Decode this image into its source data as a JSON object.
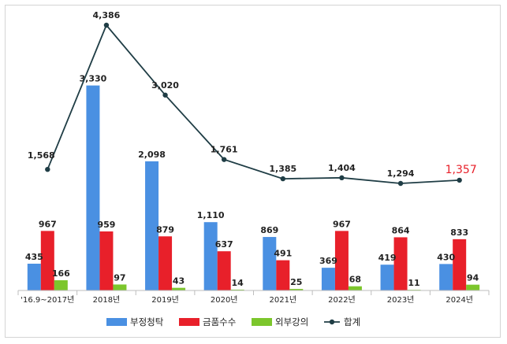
{
  "chart_data": {
    "type": "bar",
    "categories": [
      "'16.9~2017년",
      "2018년",
      "2019년",
      "2020년",
      "2021년",
      "2022년",
      "2023년",
      "2024년"
    ],
    "series": [
      {
        "name": "부정청탁",
        "kind": "bar",
        "color": "#4a90e2",
        "values": [
          435,
          3330,
          2098,
          1110,
          869,
          369,
          419,
          430
        ]
      },
      {
        "name": "금품수수",
        "kind": "bar",
        "color": "#e8202a",
        "values": [
          967,
          959,
          879,
          637,
          491,
          967,
          864,
          833
        ]
      },
      {
        "name": "외부강의",
        "kind": "bar",
        "color": "#7cc62c",
        "values": [
          166,
          97,
          43,
          14,
          25,
          68,
          11,
          94
        ]
      },
      {
        "name": "합계",
        "kind": "line",
        "color": "#1f3d45",
        "values": [
          1568,
          4386,
          3020,
          1761,
          1385,
          1404,
          1294,
          1357
        ],
        "highlight_last_color": "#e8202a"
      }
    ],
    "bar_labels": [
      [
        "435",
        "3,330",
        "2,098",
        "1,110",
        "869",
        "369",
        "419",
        "430"
      ],
      [
        "967",
        "959",
        "879",
        "637",
        "491",
        "967",
        "864",
        "833"
      ],
      [
        "166",
        "97",
        "43",
        "14",
        "25",
        "68",
        "11",
        "94"
      ]
    ],
    "line_labels": [
      "1,568",
      "4,386",
      "3,020",
      "1,761",
      "1,385",
      "1,404",
      "1,294",
      "1,357"
    ],
    "legend_position": "bottom",
    "grid": false
  }
}
